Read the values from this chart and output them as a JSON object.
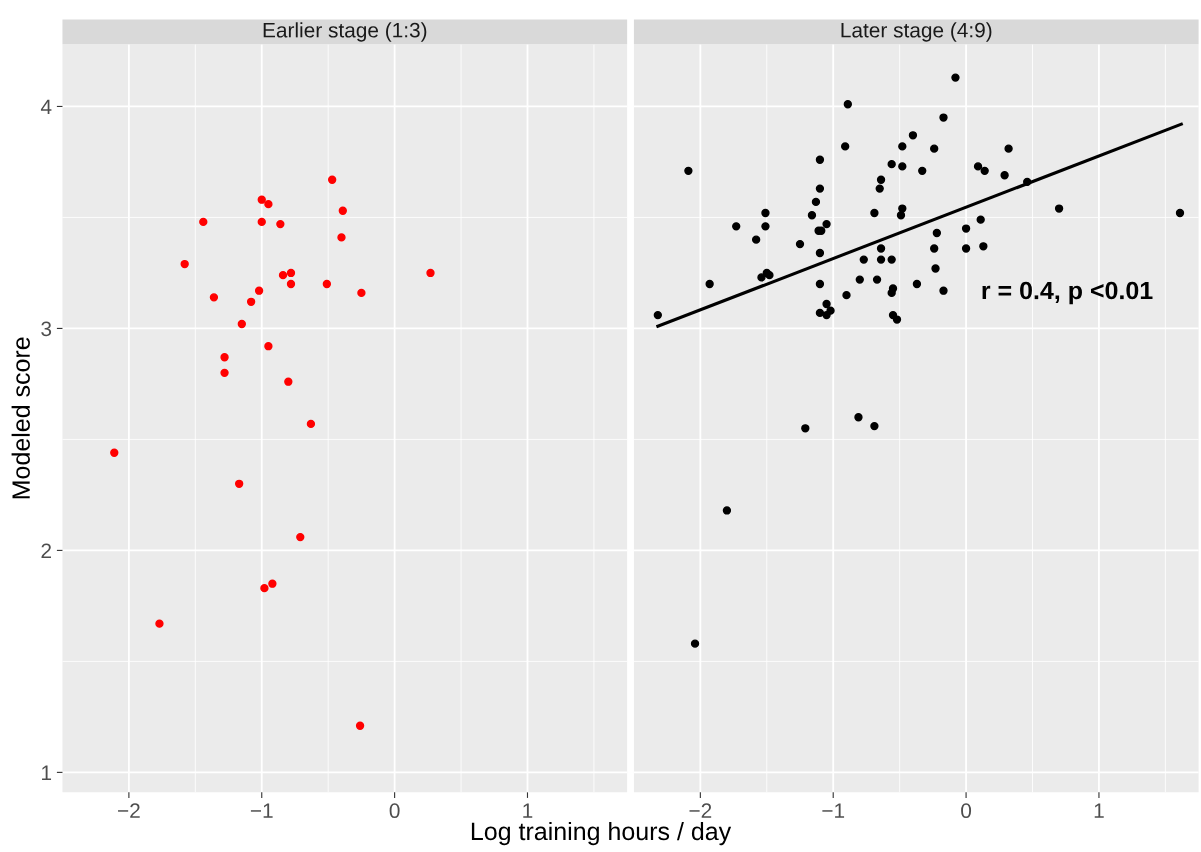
{
  "chart_data": [
    {
      "type": "scatter",
      "title": "Earlier stage (1:3)",
      "xlabel": "Log training hours / day",
      "ylabel": "Modeled score",
      "xlim": [
        -2.5,
        1.75
      ],
      "ylim": [
        0.91,
        4.28
      ],
      "xticks": [
        {
          "value": -2,
          "label": "−2"
        },
        {
          "value": -1.5,
          "label": null
        },
        {
          "value": -1,
          "label": "−1"
        },
        {
          "value": -0.5,
          "label": null
        },
        0,
        {
          "value": 0.5,
          "label": null
        },
        1,
        {
          "value": 1.5,
          "label": null
        }
      ],
      "yticks": [
        1,
        {
          "value": 1.5,
          "label": null
        },
        2,
        {
          "value": 2.5,
          "label": null
        },
        3,
        {
          "value": 3.5,
          "label": null
        },
        4
      ],
      "grid": true,
      "marker": "circle",
      "series": [
        {
          "color": "#ff0000",
          "x": [
            -2.11,
            -1.77,
            -1.58,
            -1.44,
            -1.36,
            -1.28,
            -1.28,
            -1.15,
            -1.17,
            -1.08,
            -1.02,
            -1.0,
            -1.0,
            -0.95,
            -0.98,
            -0.95,
            -0.92,
            -0.86,
            -0.84,
            -0.78,
            -0.78,
            -0.8,
            -0.71,
            -0.63,
            -0.51,
            -0.47,
            -0.4,
            -0.39,
            -0.25,
            -0.26,
            0.27
          ],
          "values": [
            2.44,
            1.67,
            3.29,
            3.48,
            3.14,
            2.87,
            2.8,
            3.02,
            2.3,
            3.12,
            3.17,
            3.58,
            3.48,
            3.56,
            1.83,
            2.92,
            1.85,
            3.47,
            3.24,
            3.25,
            3.2,
            2.76,
            2.06,
            2.57,
            3.2,
            3.67,
            3.41,
            3.53,
            3.16,
            1.21,
            3.25
          ]
        }
      ]
    },
    {
      "type": "scatter",
      "title": "Later stage (4:9)",
      "xlim": [
        -2.5,
        1.75
      ],
      "ylim": [
        0.91,
        4.28
      ],
      "xticks": [
        {
          "value": -2,
          "label": "−2"
        },
        {
          "value": -1.5,
          "label": null
        },
        {
          "value": -1,
          "label": "−1"
        },
        {
          "value": -0.5,
          "label": null
        },
        0,
        {
          "value": 0.5,
          "label": null
        },
        1,
        {
          "value": 1.5,
          "label": null
        }
      ],
      "yticks": [
        1,
        {
          "value": 1.5,
          "label": null
        },
        2,
        {
          "value": 2.5,
          "label": null
        },
        3,
        {
          "value": 3.5,
          "label": null
        },
        4
      ],
      "tick_labels": "x",
      "grid": true,
      "annotations": [
        "r = 0.4, p <0.01"
      ],
      "series": [
        {
          "color": "#000000",
          "marker": "circle",
          "x": [
            -2.09,
            -2.32,
            -1.93,
            -1.73,
            -1.51,
            -1.51,
            -1.58,
            -1.54,
            -1.5,
            -1.48,
            -1.25,
            -1.1,
            -1.1,
            -1.13,
            -1.16,
            -1.11,
            -1.09,
            -1.05,
            -1.1,
            -1.1,
            -1.05,
            -1.1,
            -1.05,
            -1.02,
            -0.89,
            -0.91,
            -0.9,
            -0.8,
            -0.77,
            -0.69,
            -0.67,
            -0.64,
            -0.64,
            -0.65,
            -0.64,
            -0.56,
            -0.56,
            -0.55,
            -0.56,
            -0.55,
            -0.52,
            -0.48,
            -0.48,
            -0.48,
            -0.49,
            -0.4,
            -0.37,
            -0.08,
            -0.17,
            -0.24,
            -0.33,
            0.09,
            0.14,
            0.32,
            0.29,
            0.46,
            0.7,
            1.61,
            -0.22,
            -0.24,
            -0.23,
            -0.17,
            0.0,
            0.0,
            0.11,
            0.13,
            -2.04,
            -1.8,
            -1.21,
            -0.81,
            -0.69
          ],
          "values": [
            3.71,
            3.06,
            3.2,
            3.46,
            3.52,
            3.46,
            3.4,
            3.23,
            3.25,
            3.24,
            3.38,
            3.76,
            3.63,
            3.57,
            3.51,
            3.44,
            3.44,
            3.47,
            3.34,
            3.2,
            3.11,
            3.07,
            3.06,
            3.08,
            4.01,
            3.82,
            3.15,
            3.22,
            3.31,
            3.52,
            3.22,
            3.36,
            3.31,
            3.63,
            3.67,
            3.74,
            3.31,
            3.18,
            3.16,
            3.06,
            3.04,
            3.82,
            3.73,
            3.54,
            3.51,
            3.87,
            3.2,
            4.13,
            3.95,
            3.81,
            3.71,
            3.73,
            3.71,
            3.81,
            3.69,
            3.66,
            3.54,
            3.52,
            3.43,
            3.36,
            3.27,
            3.17,
            3.45,
            3.36,
            3.49,
            3.37,
            1.58,
            2.18,
            2.55,
            2.6,
            2.56
          ]
        },
        {
          "type": "line",
          "color": "#000000",
          "marker": "none",
          "x": [
            -2.32,
            1.62
          ],
          "values": [
            3.01,
            3.92
          ]
        }
      ]
    }
  ]
}
